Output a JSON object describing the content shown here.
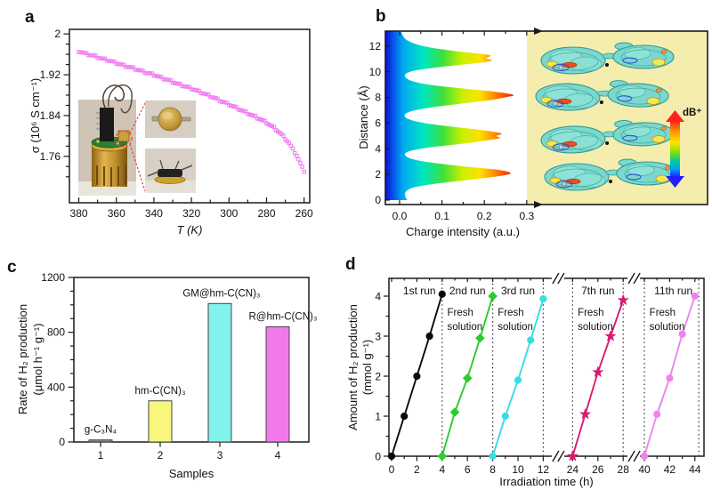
{
  "panel_labels": {
    "a": "a",
    "b": "b",
    "c": "c",
    "d": "d"
  },
  "chart_data": [
    {
      "id": "a",
      "type": "scatter",
      "xlabel": "T (K)",
      "ylabel": "σ (10⁶  S cm⁻¹)",
      "xlim": [
        385,
        257
      ],
      "ylim": [
        1.669,
        2.009
      ],
      "xticks": [
        380,
        360,
        340,
        320,
        300,
        280,
        260
      ],
      "xtick_labels": [
        "380",
        "360",
        "340",
        "320",
        "300",
        "280",
        "260"
      ],
      "yticks": [
        2,
        1.92,
        1.84,
        1.76
      ],
      "ytick_labels": [
        "2",
        "1.92",
        "1.84",
        "1.76"
      ],
      "marker": "open-square",
      "marker_color": "#f180f1",
      "points": [
        [
          380,
          1.966
        ],
        [
          376,
          1.961
        ],
        [
          372,
          1.957
        ],
        [
          368,
          1.952
        ],
        [
          364,
          1.948
        ],
        [
          360,
          1.943
        ],
        [
          356,
          1.938
        ],
        [
          352,
          1.934
        ],
        [
          348,
          1.929
        ],
        [
          344,
          1.924
        ],
        [
          340,
          1.92
        ],
        [
          336,
          1.914
        ],
        [
          332,
          1.909
        ],
        [
          328,
          1.903
        ],
        [
          324,
          1.898
        ],
        [
          320,
          1.893
        ],
        [
          316,
          1.887
        ],
        [
          312,
          1.881
        ],
        [
          308,
          1.875
        ],
        [
          304,
          1.868
        ],
        [
          300,
          1.862
        ],
        [
          296,
          1.855
        ],
        [
          292,
          1.848
        ],
        [
          288,
          1.841
        ],
        [
          284,
          1.834
        ],
        [
          280,
          1.826
        ],
        [
          276,
          1.816
        ],
        [
          272,
          1.803
        ],
        [
          268,
          1.786
        ],
        [
          264,
          1.762
        ],
        [
          260,
          1.73
        ]
      ],
      "inset": "photos of conductivity measurement device and sample holder"
    },
    {
      "id": "b",
      "type": "area",
      "xlabel": "Charge intensity (a.u.)",
      "ylabel": "Distance (Å)",
      "xlim": [
        0,
        0.33
      ],
      "ylim": [
        0,
        13.2
      ],
      "xticks": [
        0,
        0.1,
        0.2,
        0.3
      ],
      "xtick_labels": [
        "0.0",
        "0.1",
        "0.2",
        "0.3"
      ],
      "yticks": [
        0,
        2,
        4,
        6,
        8,
        10,
        12
      ],
      "ytick_labels": [
        "0",
        "2",
        "4",
        "6",
        "8",
        "10",
        "12"
      ],
      "colorbar_label": "dB⁺",
      "gradient": [
        "#0a10e0",
        "#00aaf0",
        "#00e6c0",
        "#3ce03c",
        "#c8f000",
        "#ffe000",
        "#ff8000",
        "#ff1400"
      ],
      "profile": [
        [
          0,
          0.018
        ],
        [
          0.35,
          0.013
        ],
        [
          0.7,
          0.016
        ],
        [
          1.0,
          0.035
        ],
        [
          1.3,
          0.09
        ],
        [
          1.6,
          0.17
        ],
        [
          1.9,
          0.24
        ],
        [
          2.1,
          0.262
        ],
        [
          2.35,
          0.235
        ],
        [
          2.6,
          0.16
        ],
        [
          2.9,
          0.08
        ],
        [
          3.2,
          0.03
        ],
        [
          3.5,
          0.013
        ],
        [
          3.8,
          0.022
        ],
        [
          4.1,
          0.07
        ],
        [
          4.4,
          0.15
        ],
        [
          4.7,
          0.215
        ],
        [
          4.85,
          0.237
        ],
        [
          5.0,
          0.228
        ],
        [
          5.2,
          0.24
        ],
        [
          5.45,
          0.195
        ],
        [
          5.7,
          0.13
        ],
        [
          6.0,
          0.06
        ],
        [
          6.3,
          0.022
        ],
        [
          6.6,
          0.012
        ],
        [
          6.9,
          0.025
        ],
        [
          7.2,
          0.07
        ],
        [
          7.5,
          0.14
        ],
        [
          7.8,
          0.215
        ],
        [
          8.05,
          0.255
        ],
        [
          8.2,
          0.268
        ],
        [
          8.45,
          0.225
        ],
        [
          8.7,
          0.15
        ],
        [
          9.0,
          0.07
        ],
        [
          9.3,
          0.028
        ],
        [
          9.65,
          0.013
        ],
        [
          9.95,
          0.02
        ],
        [
          10.2,
          0.055
        ],
        [
          10.5,
          0.13
        ],
        [
          10.75,
          0.2
        ],
        [
          10.9,
          0.218
        ],
        [
          11.05,
          0.205
        ],
        [
          11.3,
          0.212
        ],
        [
          11.55,
          0.15
        ],
        [
          11.8,
          0.09
        ],
        [
          12.1,
          0.045
        ],
        [
          12.45,
          0.018
        ],
        [
          12.8,
          0.008
        ],
        [
          13.1,
          0.004
        ]
      ]
    },
    {
      "id": "c",
      "type": "bar",
      "xlabel": "Samples",
      "ylabel_line1": "Rate of H₂ production",
      "ylabel_line2": "(μmol h⁻¹ g⁻¹)",
      "ylim": [
        0,
        1200
      ],
      "yticks": [
        0,
        400,
        800,
        1200
      ],
      "ytick_labels": [
        "0",
        "400",
        "800",
        "1200"
      ],
      "categories": [
        "1",
        "2",
        "3",
        "4"
      ],
      "values": [
        15,
        300,
        1010,
        840
      ],
      "bar_labels": [
        "g-C₃N₄",
        "hm-C(CN)₃",
        "GM@hm-C(CN)₃",
        "R@hm-C(CN)₃"
      ],
      "bar_colors": [
        "#8c8c8c",
        "#f9f67e",
        "#82f3ec",
        "#f279ec"
      ]
    },
    {
      "id": "d",
      "type": "line",
      "xlabel": "Irradiation time (h)",
      "ylabel_line1": "Amount of H₂ production",
      "ylabel_line2": "(mmol g⁻¹)",
      "ylim": [
        0,
        4.4
      ],
      "yticks": [
        0,
        1,
        2,
        3,
        4
      ],
      "ytick_labels": [
        "0",
        "1",
        "2",
        "3",
        "4"
      ],
      "xticks": [
        0,
        2,
        4,
        6,
        8,
        10,
        12,
        24,
        26,
        28,
        40,
        42,
        44
      ],
      "xtick_labels": [
        "0",
        "2",
        "4",
        "6",
        "8",
        "10",
        "12",
        "24",
        "26",
        "28",
        "40",
        "42",
        "44"
      ],
      "minor_xticks": [
        1,
        3,
        5,
        7,
        9,
        11,
        25,
        27,
        41,
        43
      ],
      "axis_breaks": [
        [
          12,
          24
        ],
        [
          28,
          40
        ]
      ],
      "dotted_lines_x": [
        4,
        8,
        12,
        24,
        28,
        40,
        44.3
      ],
      "series": [
        {
          "name": "1st run",
          "color": "#0a0a0a",
          "marker": "circle",
          "label_x": 2.2,
          "fresh_label": null,
          "x": [
            0,
            1,
            2,
            3,
            4
          ],
          "y": [
            0,
            1.0,
            2.0,
            3.0,
            4.05
          ]
        },
        {
          "name": "2nd run",
          "color": "#2dcb2d",
          "marker": "diamond",
          "label_x": 6,
          "fresh_label": "Fresh solution",
          "fresh_x": 4.4,
          "x": [
            4,
            5,
            6,
            7,
            8
          ],
          "y": [
            0,
            1.1,
            1.95,
            2.95,
            4.0
          ]
        },
        {
          "name": "3rd run",
          "color": "#35dde4",
          "marker": "circle",
          "label_x": 10,
          "fresh_label": "Fresh solution",
          "fresh_x": 8.4,
          "x": [
            8,
            9,
            10,
            11,
            12
          ],
          "y": [
            0,
            1.0,
            1.9,
            2.9,
            3.93
          ]
        },
        {
          "name": "7th run",
          "color": "#d91a72",
          "marker": "star",
          "label_x": 26,
          "fresh_label": "Fresh solution",
          "fresh_x": 24.4,
          "x": [
            24,
            25,
            26,
            27,
            28
          ],
          "y": [
            0,
            1.05,
            2.1,
            3.0,
            3.9
          ]
        },
        {
          "name": "11th run",
          "color": "#ee82ee",
          "marker": "circle",
          "label_x": 42.3,
          "fresh_label": "Fresh solution",
          "fresh_x": 40.4,
          "x": [
            40,
            41,
            42,
            43,
            44
          ],
          "y": [
            0,
            1.05,
            1.95,
            3.05,
            4.0
          ]
        }
      ]
    }
  ]
}
